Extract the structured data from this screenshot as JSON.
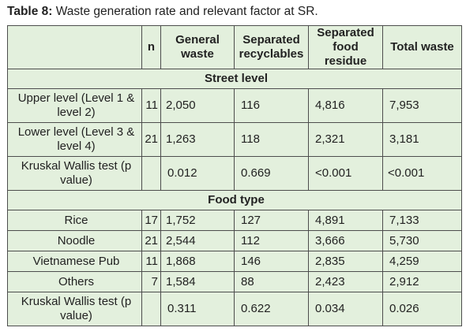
{
  "caption": {
    "label": "Table 8:",
    "text": " Waste generation rate and relevant factor at SR."
  },
  "header": {
    "col0": "",
    "n": "n",
    "general_waste": "General waste",
    "separated_recyclables": "Separated recyclables",
    "separated_food_residue": "Separated food residue",
    "total_waste": "Total waste"
  },
  "sections": [
    {
      "title": "Street level",
      "rows": [
        {
          "label": "Upper level (Level 1 & level 2)",
          "n": "11",
          "general": "2,050",
          "recyclables": "116",
          "food": "4,816",
          "total": "7,953"
        },
        {
          "label": "Lower level (Level 3 & level 4)",
          "n": "21",
          "general": "1,263",
          "recyclables": "118",
          "food": "2,321",
          "total": "3,181"
        },
        {
          "label": "Kruskal Wallis test (p value)",
          "n": "",
          "general": "0.012",
          "recyclables": "0.669",
          "food": "<0.001",
          "total": "<0.001"
        }
      ]
    },
    {
      "title": "Food type",
      "rows": [
        {
          "label": "Rice",
          "n": "17",
          "general": "1,752",
          "recyclables": "127",
          "food": "4,891",
          "total": "7,133"
        },
        {
          "label": "Noodle",
          "n": "21",
          "general": "2,544",
          "recyclables": "112",
          "food": "3,666",
          "total": "5,730"
        },
        {
          "label": "Vietnamese Pub",
          "n": "11",
          "general": "1,868",
          "recyclables": "146",
          "food": "2,835",
          "total": "4,259"
        },
        {
          "label": "Others",
          "n": "7",
          "general": "1,584",
          "recyclables": "88",
          "food": "2,423",
          "total": "2,912"
        },
        {
          "label": "Kruskal Wallis test (p value)",
          "n": "",
          "general": "0.311",
          "recyclables": "0.622",
          "food": "0.034",
          "total": "0.026"
        }
      ]
    }
  ]
}
